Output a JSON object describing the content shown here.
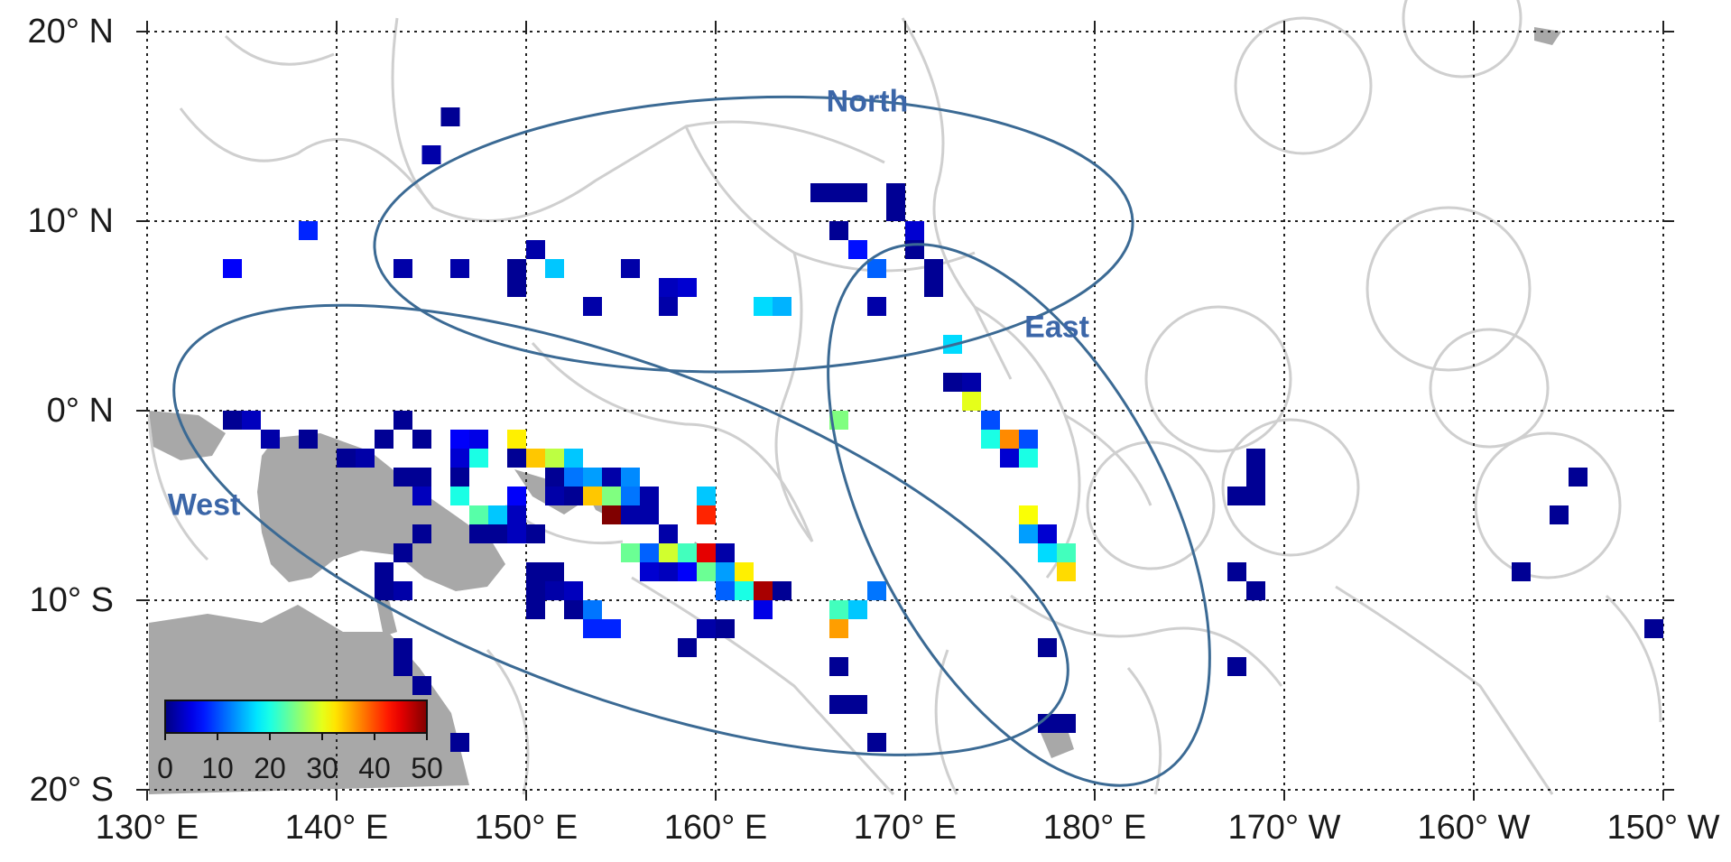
{
  "map": {
    "lat_range": [
      -20,
      20
    ],
    "lon_range": [
      130,
      210
    ],
    "grid_step_deg": 10,
    "grid_style": "dotted",
    "land_color": "#a8a8a8",
    "boundary_color": "#cfcfcf",
    "lat_labels": [
      "20° N",
      "10° N",
      "0° N",
      "10° S",
      "20° S"
    ],
    "lon_labels": [
      "130° E",
      "140° E",
      "150° E",
      "160° E",
      "170° E",
      "180° E",
      "170° W",
      "160° W",
      "150° W"
    ]
  },
  "regions": [
    {
      "name": "North",
      "center_lon": 162,
      "center_lat": 9.3,
      "label_lon": 168,
      "label_lat": 16.3
    },
    {
      "name": "East",
      "center_lon": 176,
      "center_lat": -5.5,
      "label_lon": 178,
      "label_lat": 4.4
    },
    {
      "name": "West",
      "center_lon": 155,
      "center_lat": -6.3,
      "label_lon": 133,
      "label_lat": -5
    }
  ],
  "colorbar": {
    "min": 0,
    "max": 50,
    "ticks": [
      "0",
      "10",
      "20",
      "30",
      "40",
      "50"
    ],
    "colormap": "jet"
  },
  "cells": [
    {
      "lon": 146,
      "lat": 15.5,
      "v": 1
    },
    {
      "lon": 145,
      "lat": 13.5,
      "v": 2
    },
    {
      "lon": 138.5,
      "lat": 9.5,
      "v": 8
    },
    {
      "lon": 134.5,
      "lat": 7.5,
      "v": 6
    },
    {
      "lon": 143.5,
      "lat": 7.5,
      "v": 2
    },
    {
      "lon": 146.5,
      "lat": 7.5,
      "v": 2
    },
    {
      "lon": 149.5,
      "lat": 7.5,
      "v": 1
    },
    {
      "lon": 149.5,
      "lat": 6.5,
      "v": 1
    },
    {
      "lon": 150.5,
      "lat": 8.5,
      "v": 2
    },
    {
      "lon": 151.5,
      "lat": 7.5,
      "v": 16
    },
    {
      "lon": 153.5,
      "lat": 5.5,
      "v": 2
    },
    {
      "lon": 155.5,
      "lat": 7.5,
      "v": 2
    },
    {
      "lon": 157.5,
      "lat": 6.5,
      "v": 3
    },
    {
      "lon": 158.5,
      "lat": 6.5,
      "v": 4
    },
    {
      "lon": 157.5,
      "lat": 5.5,
      "v": 2
    },
    {
      "lon": 162.5,
      "lat": 5.5,
      "v": 17
    },
    {
      "lon": 163.5,
      "lat": 5.5,
      "v": 15
    },
    {
      "lon": 165.5,
      "lat": 11.5,
      "v": 1
    },
    {
      "lon": 166.5,
      "lat": 11.5,
      "v": 1
    },
    {
      "lon": 167.5,
      "lat": 11.5,
      "v": 1
    },
    {
      "lon": 169.5,
      "lat": 11.5,
      "v": 1
    },
    {
      "lon": 169.5,
      "lat": 10.5,
      "v": 1
    },
    {
      "lon": 170.5,
      "lat": 9.5,
      "v": 4
    },
    {
      "lon": 170.5,
      "lat": 8.5,
      "v": 1
    },
    {
      "lon": 166.5,
      "lat": 9.5,
      "v": 1
    },
    {
      "lon": 167.5,
      "lat": 8.5,
      "v": 7
    },
    {
      "lon": 168.5,
      "lat": 7.5,
      "v": 11
    },
    {
      "lon": 171.5,
      "lat": 7.5,
      "v": 1
    },
    {
      "lon": 171.5,
      "lat": 6.5,
      "v": 1
    },
    {
      "lon": 168.5,
      "lat": 5.5,
      "v": 2
    },
    {
      "lon": 172.5,
      "lat": 3.5,
      "v": 17
    },
    {
      "lon": 172.5,
      "lat": 1.5,
      "v": 1
    },
    {
      "lon": 173.5,
      "lat": 1.5,
      "v": 2
    },
    {
      "lon": 173.5,
      "lat": 0.5,
      "v": 30
    },
    {
      "lon": 174.5,
      "lat": -0.5,
      "v": 10
    },
    {
      "lon": 174.5,
      "lat": -1.5,
      "v": 20
    },
    {
      "lon": 175.5,
      "lat": -1.5,
      "v": 37
    },
    {
      "lon": 176.5,
      "lat": -1.5,
      "v": 10
    },
    {
      "lon": 175.5,
      "lat": -2.5,
      "v": 4
    },
    {
      "lon": 176.5,
      "lat": -2.5,
      "v": 20
    },
    {
      "lon": 176.5,
      "lat": -5.5,
      "v": 31
    },
    {
      "lon": 176.5,
      "lat": -6.5,
      "v": 14
    },
    {
      "lon": 177.5,
      "lat": -6.5,
      "v": 4
    },
    {
      "lon": 177.5,
      "lat": -7.5,
      "v": 17
    },
    {
      "lon": 178.5,
      "lat": -7.5,
      "v": 22
    },
    {
      "lon": 178.5,
      "lat": -8.5,
      "v": 33
    },
    {
      "lon": 166.5,
      "lat": -0.5,
      "v": 25
    },
    {
      "lon": 134.5,
      "lat": -0.5,
      "v": 1
    },
    {
      "lon": 135.5,
      "lat": -0.5,
      "v": 3
    },
    {
      "lon": 136.5,
      "lat": -1.5,
      "v": 2
    },
    {
      "lon": 138.5,
      "lat": -1.5,
      "v": 1
    },
    {
      "lon": 140.5,
      "lat": -2.5,
      "v": 1
    },
    {
      "lon": 141.5,
      "lat": -2.5,
      "v": 2
    },
    {
      "lon": 142.5,
      "lat": -1.5,
      "v": 1
    },
    {
      "lon": 143.5,
      "lat": -0.5,
      "v": 1
    },
    {
      "lon": 144.5,
      "lat": -1.5,
      "v": 1
    },
    {
      "lon": 143.5,
      "lat": -3.5,
      "v": 1
    },
    {
      "lon": 144.5,
      "lat": -3.5,
      "v": 1
    },
    {
      "lon": 144.5,
      "lat": -4.5,
      "v": 3
    },
    {
      "lon": 146.5,
      "lat": -1.5,
      "v": 6
    },
    {
      "lon": 147.5,
      "lat": -1.5,
      "v": 5
    },
    {
      "lon": 146.5,
      "lat": -2.5,
      "v": 4
    },
    {
      "lon": 147.5,
      "lat": -2.5,
      "v": 20
    },
    {
      "lon": 146.5,
      "lat": -3.5,
      "v": 1
    },
    {
      "lon": 146.5,
      "lat": -4.5,
      "v": 20
    },
    {
      "lon": 147.5,
      "lat": -5.5,
      "v": 23
    },
    {
      "lon": 148.5,
      "lat": -5.5,
      "v": 16
    },
    {
      "lon": 147.5,
      "lat": -6.5,
      "v": 1
    },
    {
      "lon": 148.5,
      "lat": -6.5,
      "v": 1
    },
    {
      "lon": 149.5,
      "lat": -5.5,
      "v": 3
    },
    {
      "lon": 149.5,
      "lat": -6.5,
      "v": 3
    },
    {
      "lon": 150.5,
      "lat": -6.5,
      "v": 1
    },
    {
      "lon": 149.5,
      "lat": -1.5,
      "v": 32
    },
    {
      "lon": 149.5,
      "lat": -2.5,
      "v": 1
    },
    {
      "lon": 149.5,
      "lat": -4.5,
      "v": 6
    },
    {
      "lon": 150.5,
      "lat": -2.5,
      "v": 34
    },
    {
      "lon": 151.5,
      "lat": -2.5,
      "v": 28
    },
    {
      "lon": 152.5,
      "lat": -2.5,
      "v": 16
    },
    {
      "lon": 152.5,
      "lat": -3.5,
      "v": 12
    },
    {
      "lon": 151.5,
      "lat": -3.5,
      "v": 1
    },
    {
      "lon": 151.5,
      "lat": -4.5,
      "v": 2
    },
    {
      "lon": 152.5,
      "lat": -4.5,
      "v": 1
    },
    {
      "lon": 153.5,
      "lat": -3.5,
      "v": 14
    },
    {
      "lon": 153.5,
      "lat": -4.5,
      "v": 34
    },
    {
      "lon": 154.5,
      "lat": -3.5,
      "v": 2
    },
    {
      "lon": 154.5,
      "lat": -4.5,
      "v": 25
    },
    {
      "lon": 155.5,
      "lat": -4.5,
      "v": 12
    },
    {
      "lon": 155.5,
      "lat": -3.5,
      "v": 13
    },
    {
      "lon": 154.5,
      "lat": -5.5,
      "v": 50
    },
    {
      "lon": 155.5,
      "lat": -5.5,
      "v": 2
    },
    {
      "lon": 156.5,
      "lat": -4.5,
      "v": 2
    },
    {
      "lon": 156.5,
      "lat": -5.5,
      "v": 2
    },
    {
      "lon": 155.5,
      "lat": -7.5,
      "v": 24
    },
    {
      "lon": 156.5,
      "lat": -7.5,
      "v": 11
    },
    {
      "lon": 157.5,
      "lat": -6.5,
      "v": 2
    },
    {
      "lon": 157.5,
      "lat": -7.5,
      "v": 29
    },
    {
      "lon": 158.5,
      "lat": -7.5,
      "v": 22
    },
    {
      "lon": 159.5,
      "lat": -7.5,
      "v": 45
    },
    {
      "lon": 160.5,
      "lat": -7.5,
      "v": 2
    },
    {
      "lon": 156.5,
      "lat": -8.5,
      "v": 4
    },
    {
      "lon": 157.5,
      "lat": -8.5,
      "v": 3
    },
    {
      "lon": 158.5,
      "lat": -8.5,
      "v": 6
    },
    {
      "lon": 159.5,
      "lat": -8.5,
      "v": 24
    },
    {
      "lon": 160.5,
      "lat": -8.5,
      "v": 14
    },
    {
      "lon": 161.5,
      "lat": -8.5,
      "v": 32
    },
    {
      "lon": 160.5,
      "lat": -9.5,
      "v": 11
    },
    {
      "lon": 161.5,
      "lat": -9.5,
      "v": 20
    },
    {
      "lon": 162.5,
      "lat": -9.5,
      "v": 48
    },
    {
      "lon": 163.5,
      "lat": -9.5,
      "v": 1
    },
    {
      "lon": 162.5,
      "lat": -10.5,
      "v": 5
    },
    {
      "lon": 159.5,
      "lat": -4.5,
      "v": 16
    },
    {
      "lon": 159.5,
      "lat": -5.5,
      "v": 42
    },
    {
      "lon": 150.5,
      "lat": -8.5,
      "v": 1
    },
    {
      "lon": 151.5,
      "lat": -8.5,
      "v": 1
    },
    {
      "lon": 150.5,
      "lat": -9.5,
      "v": 1
    },
    {
      "lon": 151.5,
      "lat": -9.5,
      "v": 2
    },
    {
      "lon": 150.5,
      "lat": -10.5,
      "v": 1
    },
    {
      "lon": 152.5,
      "lat": -10.5,
      "v": 1
    },
    {
      "lon": 152.5,
      "lat": -9.5,
      "v": 3
    },
    {
      "lon": 153.5,
      "lat": -10.5,
      "v": 12
    },
    {
      "lon": 153.5,
      "lat": -11.5,
      "v": 8
    },
    {
      "lon": 154.5,
      "lat": -11.5,
      "v": 8
    },
    {
      "lon": 158.5,
      "lat": -12.5,
      "v": 1
    },
    {
      "lon": 159.5,
      "lat": -11.5,
      "v": 2
    },
    {
      "lon": 160.5,
      "lat": -11.5,
      "v": 1
    },
    {
      "lon": 144.5,
      "lat": -6.5,
      "v": 1
    },
    {
      "lon": 143.5,
      "lat": -7.5,
      "v": 1
    },
    {
      "lon": 142.5,
      "lat": -8.5,
      "v": 1
    },
    {
      "lon": 142.5,
      "lat": -9.5,
      "v": 1
    },
    {
      "lon": 143.5,
      "lat": -9.5,
      "v": 2
    },
    {
      "lon": 143.5,
      "lat": -12.5,
      "v": 1
    },
    {
      "lon": 143.5,
      "lat": -13.5,
      "v": 1
    },
    {
      "lon": 144.5,
      "lat": -14.5,
      "v": 1
    },
    {
      "lon": 146.5,
      "lat": -17.5,
      "v": 1
    },
    {
      "lon": 166.5,
      "lat": -10.5,
      "v": 22
    },
    {
      "lon": 167.5,
      "lat": -10.5,
      "v": 16
    },
    {
      "lon": 168.5,
      "lat": -9.5,
      "v": 12
    },
    {
      "lon": 166.5,
      "lat": -11.5,
      "v": 36
    },
    {
      "lon": 166.5,
      "lat": -13.5,
      "v": 1
    },
    {
      "lon": 166.5,
      "lat": -15.5,
      "v": 1
    },
    {
      "lon": 167.5,
      "lat": -15.5,
      "v": 1
    },
    {
      "lon": 168.5,
      "lat": -17.5,
      "v": 1
    },
    {
      "lon": 177.5,
      "lat": -12.5,
      "v": 1
    },
    {
      "lon": 177.5,
      "lat": -16.5,
      "v": 1
    },
    {
      "lon": 178.5,
      "lat": -16.5,
      "v": 1
    },
    {
      "lon": 188.5,
      "lat": -2.5,
      "v": 1
    },
    {
      "lon": 188.5,
      "lat": -3.5,
      "v": 1
    },
    {
      "lon": 187.5,
      "lat": -4.5,
      "v": 1
    },
    {
      "lon": 188.5,
      "lat": -4.5,
      "v": 1
    },
    {
      "lon": 187.5,
      "lat": -8.5,
      "v": 1
    },
    {
      "lon": 188.5,
      "lat": -9.5,
      "v": 1
    },
    {
      "lon": 187.5,
      "lat": -13.5,
      "v": 1
    },
    {
      "lon": 202.5,
      "lat": -8.5,
      "v": 1
    },
    {
      "lon": 204.5,
      "lat": -5.5,
      "v": 1
    },
    {
      "lon": 205.5,
      "lat": -3.5,
      "v": 1
    },
    {
      "lon": 209.5,
      "lat": -11.5,
      "v": 1
    }
  ]
}
